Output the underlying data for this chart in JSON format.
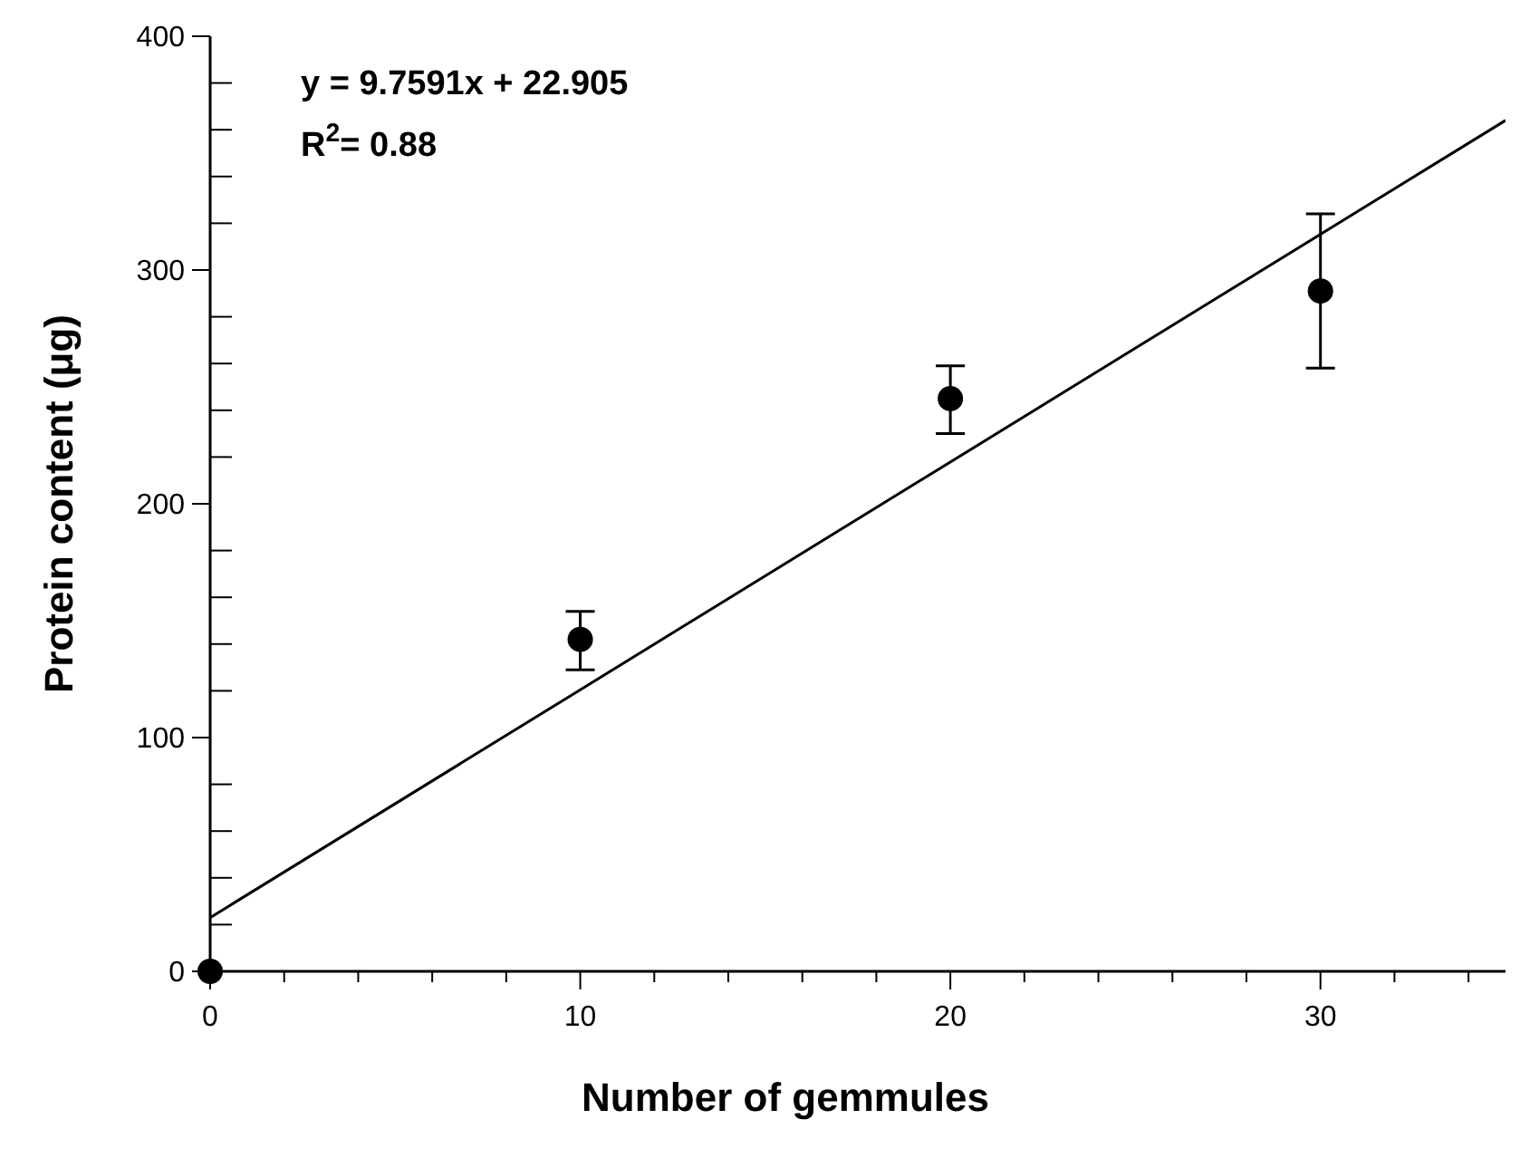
{
  "chart_data": {
    "type": "scatter",
    "xlabel": "Number of gemmules",
    "ylabel": "Protein content (μg)",
    "annotations": [
      "y = 9.7591x + 22.905",
      "R$^{2}$= 0.88"
    ],
    "xlim": [
      0,
      35
    ],
    "ylim": [
      0,
      400
    ],
    "xticks": [
      0,
      {
        "value": 2,
        "label": null
      },
      {
        "value": 4,
        "label": null
      },
      {
        "value": 6,
        "label": null
      },
      {
        "value": 8,
        "label": null
      },
      10,
      {
        "value": 12,
        "label": null
      },
      {
        "value": 14,
        "label": null
      },
      {
        "value": 16,
        "label": null
      },
      {
        "value": 18,
        "label": null
      },
      20,
      {
        "value": 22,
        "label": null
      },
      {
        "value": 24,
        "label": null
      },
      {
        "value": 26,
        "label": null
      },
      {
        "value": 28,
        "label": null
      },
      30,
      {
        "value": 32,
        "label": null
      },
      {
        "value": 34,
        "label": null
      }
    ],
    "yticks": [
      0,
      {
        "value": 20,
        "label": null
      },
      {
        "value": 40,
        "label": null
      },
      {
        "value": 60,
        "label": null
      },
      {
        "value": 80,
        "label": null
      },
      100,
      {
        "value": 120,
        "label": null
      },
      {
        "value": 140,
        "label": null
      },
      {
        "value": 160,
        "label": null
      },
      {
        "value": 180,
        "label": null
      },
      200,
      {
        "value": 220,
        "label": null
      },
      {
        "value": 240,
        "label": null
      },
      {
        "value": 260,
        "label": null
      },
      {
        "value": 280,
        "label": null
      },
      300,
      {
        "value": 320,
        "label": null
      },
      {
        "value": 340,
        "label": null
      },
      {
        "value": 360,
        "label": null
      },
      {
        "value": 380,
        "label": null
      },
      400
    ],
    "series": [
      {
        "marker": "circle",
        "color": "#000000",
        "x": [
          0,
          10,
          20,
          30
        ],
        "values": [
          0,
          142,
          245,
          291
        ],
        "errors": [
          null,
          [
            129,
            154
          ],
          [
            230,
            259
          ],
          [
            258,
            324
          ]
        ]
      },
      {
        "type": "line",
        "color": "#000000",
        "x": [
          0,
          35
        ],
        "values": [
          23,
          364
        ]
      }
    ]
  }
}
